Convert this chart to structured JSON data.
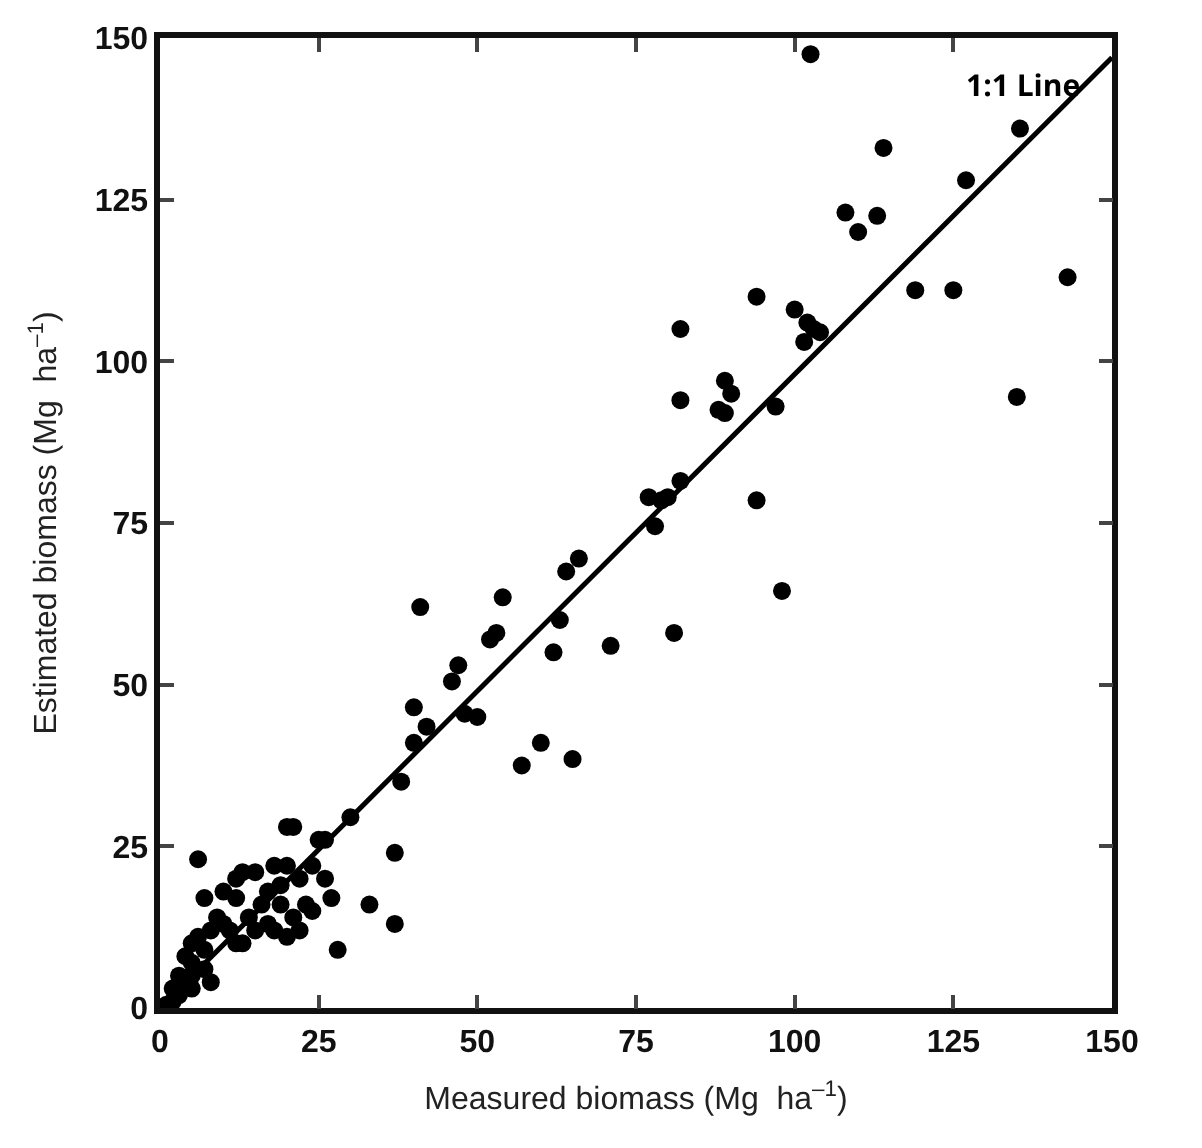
{
  "chart_data": {
    "type": "scatter",
    "xlabel": "Measured biomass (Mg  ha$^{–1}$)",
    "ylabel": "Estimated biomass (Mg  ha$^{–1}$)",
    "xlim": [
      0,
      150
    ],
    "ylim": [
      0,
      150
    ],
    "xticks": [
      0,
      25,
      50,
      75,
      100,
      125,
      150
    ],
    "yticks": [
      0,
      25,
      50,
      75,
      100,
      125,
      150
    ],
    "legend": false,
    "marker": "circle",
    "series": [
      {
        "color": "#000000",
        "x": [
          102.5,
          135.5,
          114,
          127,
          108,
          113,
          110,
          119,
          125,
          143,
          94,
          100,
          102,
          101.5,
          103,
          104,
          82,
          89,
          90,
          88,
          89,
          97,
          82,
          135,
          94,
          98,
          82,
          80,
          77,
          78,
          79,
          66,
          64,
          54,
          41,
          52,
          53,
          63,
          62,
          71,
          81,
          47,
          46,
          50,
          48,
          40,
          42,
          40,
          57,
          60,
          65,
          38,
          30,
          26,
          20,
          21,
          37,
          6,
          20,
          18,
          15,
          13,
          12,
          24,
          25,
          22,
          19,
          17,
          16,
          10,
          12,
          7,
          8,
          9,
          11,
          13,
          15,
          18,
          20,
          22,
          23,
          26,
          27,
          24,
          21,
          33,
          37,
          28,
          4,
          5,
          5,
          2,
          3,
          7,
          6,
          5,
          3,
          7,
          8,
          5,
          1,
          2,
          10,
          14,
          12,
          19,
          17
        ],
        "values": [
          147.5,
          136,
          133,
          128,
          123,
          122.5,
          120,
          111,
          111,
          113,
          110,
          108,
          106,
          103,
          105,
          104.5,
          105,
          97,
          95,
          92.5,
          92,
          93,
          94,
          94.5,
          78.5,
          64.5,
          81.5,
          79,
          79,
          74.5,
          78.5,
          69.5,
          67.5,
          63.5,
          62,
          57,
          58,
          60,
          55,
          56,
          58,
          53,
          50.5,
          45,
          45.5,
          46.5,
          43.5,
          41,
          37.5,
          41,
          38.5,
          35,
          29.5,
          26,
          28,
          28,
          24,
          23,
          22,
          22,
          21,
          21,
          20,
          22,
          26,
          20,
          19,
          18,
          16,
          18,
          17,
          17,
          12,
          14,
          12,
          10,
          12,
          12,
          11,
          12,
          16,
          20,
          17,
          15,
          14,
          16,
          13,
          9,
          8,
          7,
          5,
          1,
          2,
          9,
          11,
          10,
          5,
          6,
          4,
          3,
          0.5,
          3,
          13,
          14,
          10,
          16,
          13
        ]
      },
      {
        "type": "line",
        "name": "1:1 Line",
        "color": "#000000",
        "x": [
          0,
          150
        ],
        "values": [
          0,
          147
        ],
        "marker": "none"
      }
    ]
  }
}
